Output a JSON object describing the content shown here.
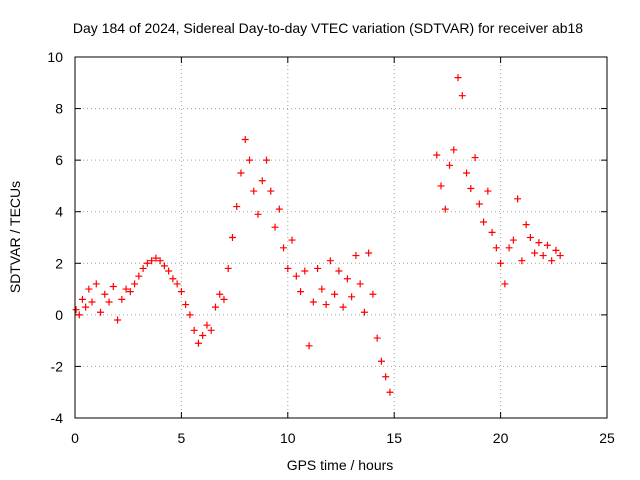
{
  "chart_data": {
    "type": "scatter",
    "title": "Day 184 of 2024, Sidereal Day-to-day VTEC variation (SDTVAR) for receiver ab18",
    "xlabel": "GPS time / hours",
    "ylabel": "SDTVAR / TECUs",
    "xlim": [
      0,
      25
    ],
    "ylim": [
      -4,
      10
    ],
    "xticks": [
      "0",
      "5",
      "10",
      "15",
      "20",
      "25"
    ],
    "yticks": [
      "-4",
      "-2",
      "0",
      "2",
      "4",
      "6",
      "8",
      "10"
    ],
    "grid": true,
    "marker": "+",
    "color": "#ff0000",
    "series": [
      {
        "name": "SDTVAR",
        "x": [
          0.05,
          0.2,
          0.35,
          0.5,
          0.65,
          0.8,
          1.0,
          1.2,
          1.4,
          1.6,
          1.8,
          2.0,
          2.2,
          2.4,
          2.6,
          2.8,
          3.0,
          3.2,
          3.4,
          3.6,
          3.8,
          4.0,
          4.2,
          4.4,
          4.6,
          4.8,
          5.0,
          5.2,
          5.4,
          5.6,
          5.8,
          6.0,
          6.2,
          6.4,
          6.6,
          6.8,
          7.0,
          7.2,
          7.4,
          7.6,
          7.8,
          8.0,
          8.2,
          8.4,
          8.6,
          8.8,
          9.0,
          9.2,
          9.4,
          9.6,
          9.8,
          10.0,
          10.2,
          10.4,
          10.6,
          10.8,
          11.0,
          11.2,
          11.4,
          11.6,
          11.8,
          12.0,
          12.2,
          12.4,
          12.6,
          12.8,
          13.0,
          13.2,
          13.4,
          13.6,
          13.8,
          14.0,
          14.2,
          14.4,
          14.6,
          14.8,
          17.0,
          17.2,
          17.4,
          17.6,
          17.8,
          18.0,
          18.2,
          18.4,
          18.6,
          18.8,
          19.0,
          19.2,
          19.4,
          19.6,
          19.8,
          20.0,
          20.2,
          20.4,
          20.6,
          20.8,
          21.0,
          21.2,
          21.4,
          21.6,
          21.8,
          22.0,
          22.2,
          22.4,
          22.6,
          22.8
        ],
        "y": [
          0.2,
          0.0,
          0.6,
          0.3,
          1.0,
          0.5,
          1.2,
          0.1,
          0.8,
          0.5,
          1.1,
          -0.2,
          0.6,
          1.0,
          0.9,
          1.2,
          1.5,
          1.8,
          2.0,
          2.1,
          2.2,
          2.1,
          1.9,
          1.7,
          1.4,
          1.2,
          0.9,
          0.4,
          0.0,
          -0.6,
          -1.1,
          -0.8,
          -0.4,
          -0.6,
          0.3,
          0.8,
          0.6,
          1.8,
          3.0,
          4.2,
          5.5,
          6.8,
          6.0,
          4.8,
          3.9,
          5.2,
          6.0,
          4.8,
          3.4,
          4.1,
          2.6,
          1.8,
          2.9,
          1.5,
          0.9,
          1.7,
          -1.2,
          0.5,
          1.8,
          1.0,
          0.4,
          2.1,
          0.8,
          1.7,
          0.3,
          1.4,
          0.7,
          2.3,
          1.2,
          0.1,
          2.4,
          0.8,
          -0.9,
          -1.8,
          -2.4,
          -3.0,
          6.2,
          5.0,
          4.1,
          5.8,
          6.4,
          9.2,
          8.5,
          5.5,
          4.9,
          6.1,
          4.3,
          3.6,
          4.8,
          3.2,
          2.6,
          2.0,
          1.2,
          2.6,
          2.9,
          4.5,
          2.1,
          3.5,
          3.0,
          2.4,
          2.8,
          2.3,
          2.7,
          2.1,
          2.5,
          2.3
        ]
      }
    ]
  }
}
